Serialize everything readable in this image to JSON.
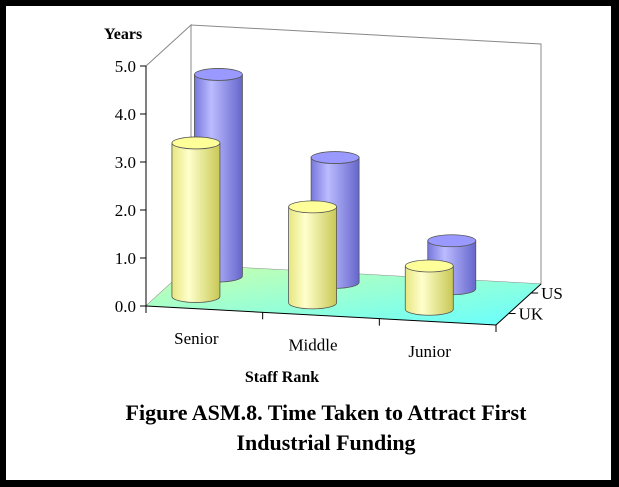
{
  "chart_data": {
    "type": "bar",
    "subtype": "3d-cylinder",
    "title": "",
    "ylabel": "Years",
    "xlabel": "Staff Rank",
    "categories": [
      "Senior",
      "Middle",
      "Junior"
    ],
    "series": [
      {
        "name": "UK",
        "values": [
          3.2,
          2.0,
          0.9
        ],
        "color": "#ffff99"
      },
      {
        "name": "US",
        "values": [
          4.2,
          2.6,
          1.0
        ],
        "color": "#9999ff"
      }
    ],
    "ylim": [
      0,
      5
    ],
    "yticks": [
      "0.0",
      "1.0",
      "2.0",
      "3.0",
      "4.0",
      "5.0"
    ],
    "floor_color": "#aaffcc",
    "grid": false,
    "legend": "depth-axis"
  },
  "caption": {
    "line1": "Figure ASM.8.  Time Taken to Attract First",
    "line2": "Industrial Funding"
  }
}
